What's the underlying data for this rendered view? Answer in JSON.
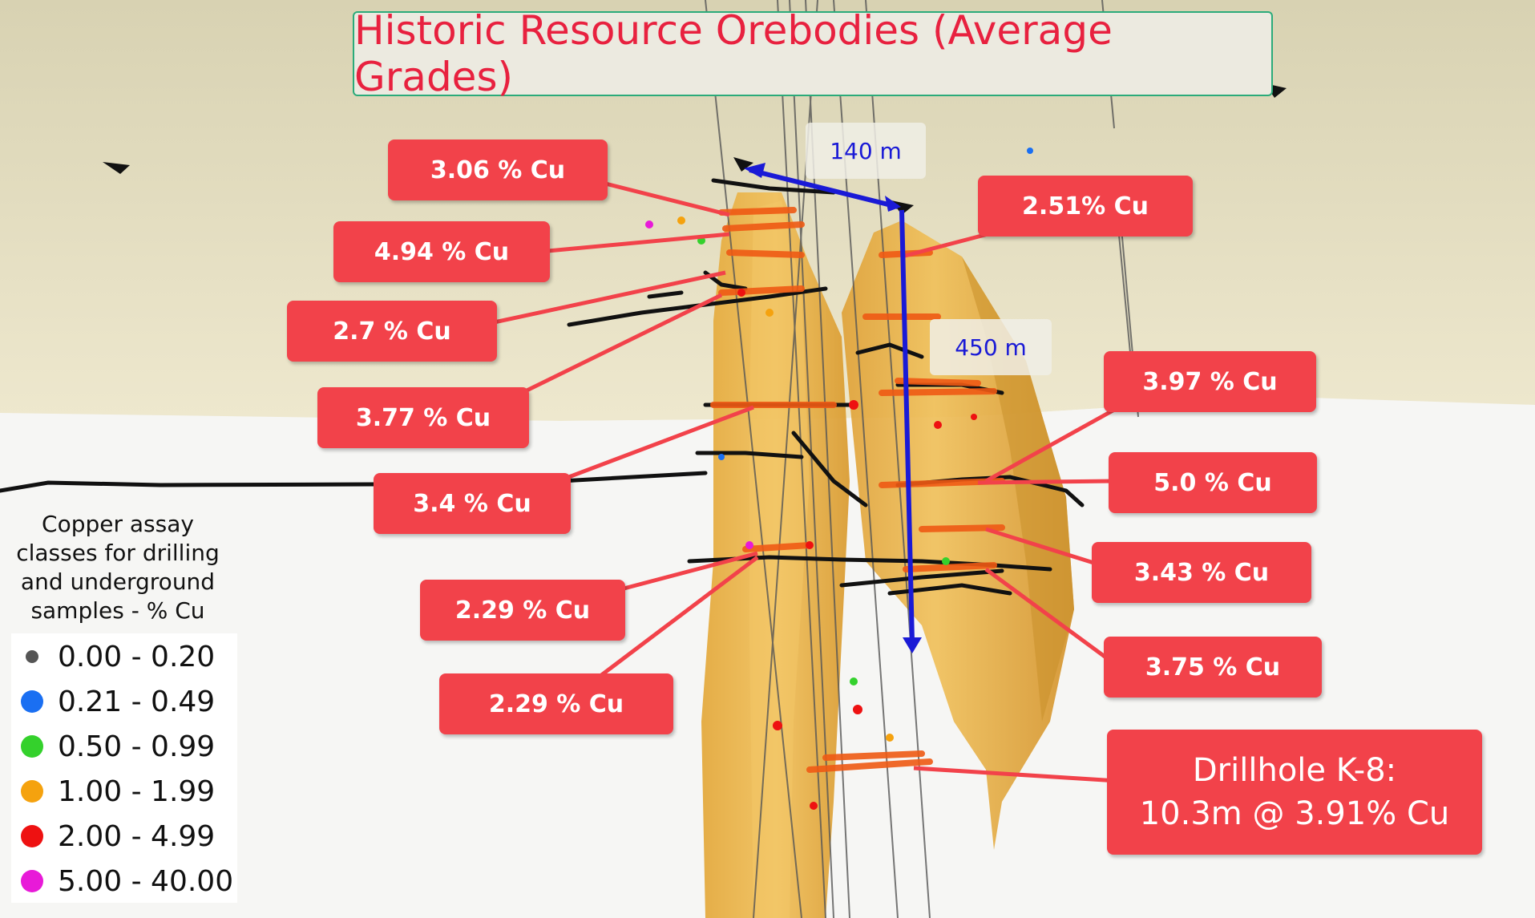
{
  "title": "Historic Resource Orebodies (Average Grades)",
  "distances": {
    "horizontal": "140 m",
    "vertical": "450 m"
  },
  "callouts": {
    "c1": "3.06 % Cu",
    "c2": "4.94 % Cu",
    "c3": "2.7 % Cu",
    "c4": "3.77 % Cu",
    "c5": "3.4 % Cu",
    "c6": "2.29 % Cu",
    "c7": "2.29 % Cu",
    "c8": "2.51% Cu",
    "c9": "3.97 % Cu",
    "c10": "5.0 % Cu",
    "c11": "3.43 % Cu",
    "c12": "3.75 % Cu"
  },
  "drillhole": {
    "line1": "Drillhole K-8:",
    "line2": "10.3m @ 3.91% Cu"
  },
  "legend": {
    "title": [
      "Copper assay",
      "classes for drilling",
      "and underground",
      "samples - % Cu"
    ],
    "items": [
      {
        "label": "0.00 - 0.20",
        "color": "#555555"
      },
      {
        "label": "0.21 - 0.49",
        "color": "#1a6ff2"
      },
      {
        "label": "0.50 - 0.99",
        "color": "#34d12c"
      },
      {
        "label": "1.00 - 1.99",
        "color": "#f5a20e"
      },
      {
        "label": "2.00 - 4.99",
        "color": "#ee1111"
      },
      {
        "label": "5.00 - 40.00",
        "color": "#e81ad8"
      }
    ]
  },
  "colors": {
    "callout": "#f2424a",
    "orebody": "#e8aa3a",
    "ground": "#e6dfbf",
    "arrow": "#1a1ad6"
  }
}
